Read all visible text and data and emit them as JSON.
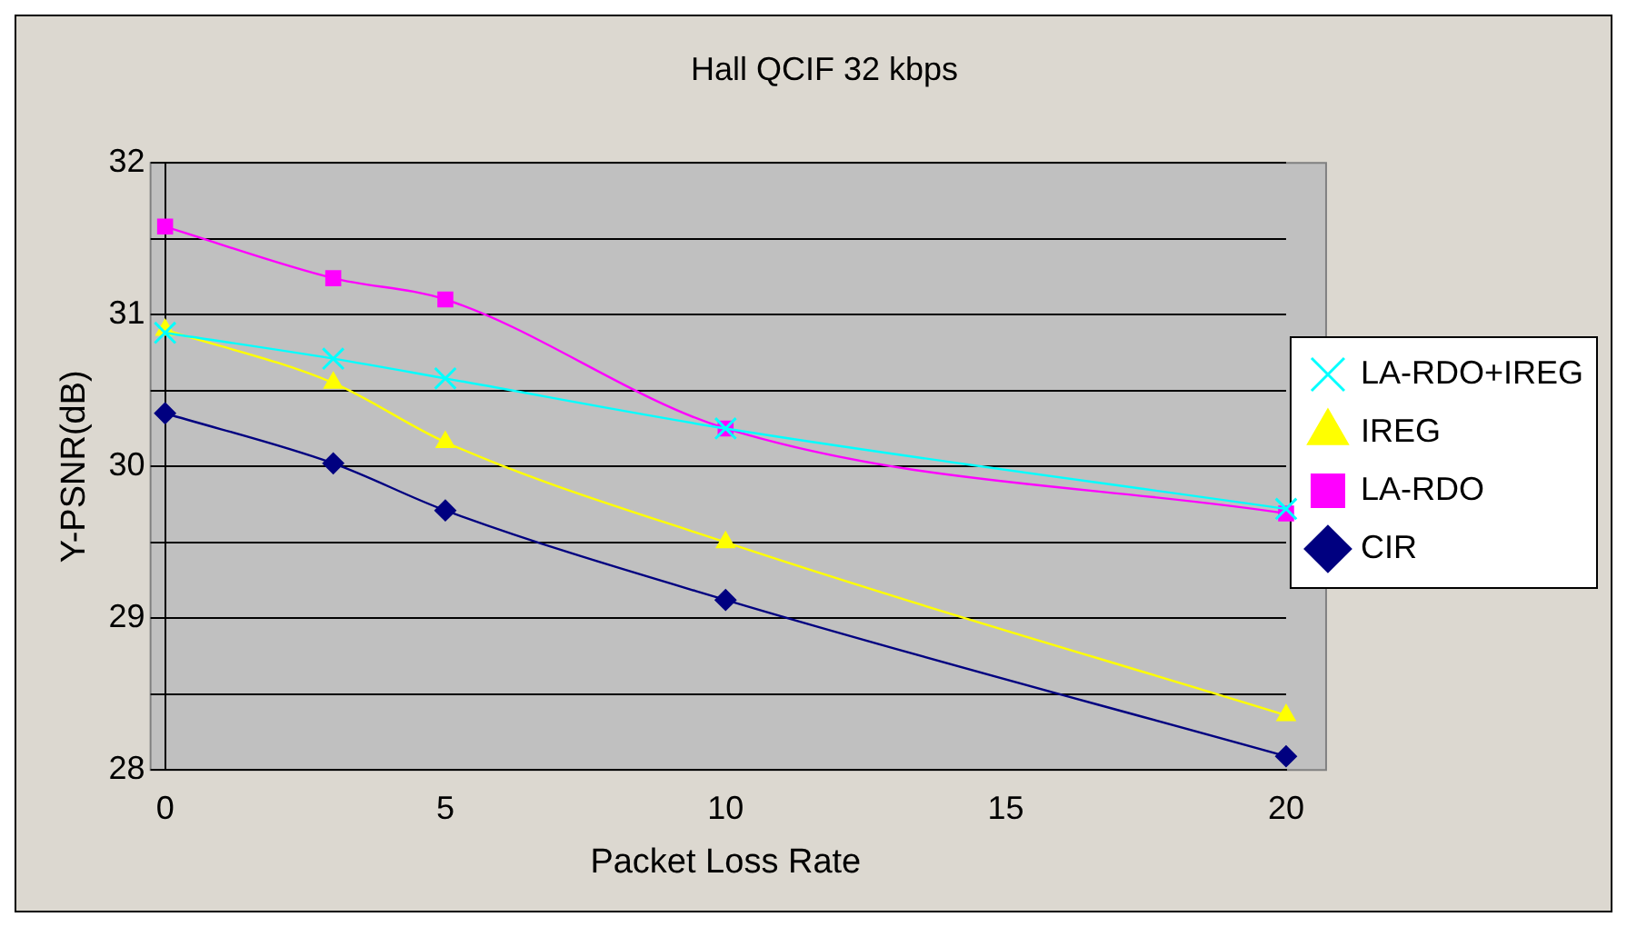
{
  "chart_data": {
    "type": "line",
    "title": "Hall QCIF 32 kbps",
    "xlabel": "Packet Loss Rate",
    "ylabel": "Y-PSNR(dB)",
    "x": [
      0,
      3,
      5,
      10,
      20
    ],
    "xlim": [
      0,
      20
    ],
    "xticks": [
      0,
      5,
      10,
      15,
      20
    ],
    "ylim": [
      28,
      32
    ],
    "yticks": [
      28,
      {
        "value": 28.5,
        "label": null
      },
      29,
      {
        "value": 29.5,
        "label": null
      },
      30,
      {
        "value": 30.5,
        "label": null
      },
      31,
      {
        "value": 31.5,
        "label": null
      },
      32
    ],
    "grid": "y",
    "legend": "right",
    "series": [
      {
        "name": "CIR",
        "color": "#000080",
        "marker": "diamond",
        "values": [
          30.35,
          30.02,
          29.71,
          29.12,
          28.09
        ]
      },
      {
        "name": "LA-RDO",
        "color": "#ff00ff",
        "marker": "square",
        "values": [
          31.58,
          31.24,
          31.1,
          30.25,
          29.69
        ]
      },
      {
        "name": "IREG",
        "color": "#ffff00",
        "marker": "triangle",
        "values": [
          30.9,
          30.55,
          30.16,
          29.5,
          28.36
        ]
      },
      {
        "name": "LA-RDO+IREG",
        "color": "#00ffff",
        "marker": "cross",
        "values": [
          30.88,
          30.71,
          30.58,
          30.25,
          29.72
        ]
      }
    ]
  }
}
